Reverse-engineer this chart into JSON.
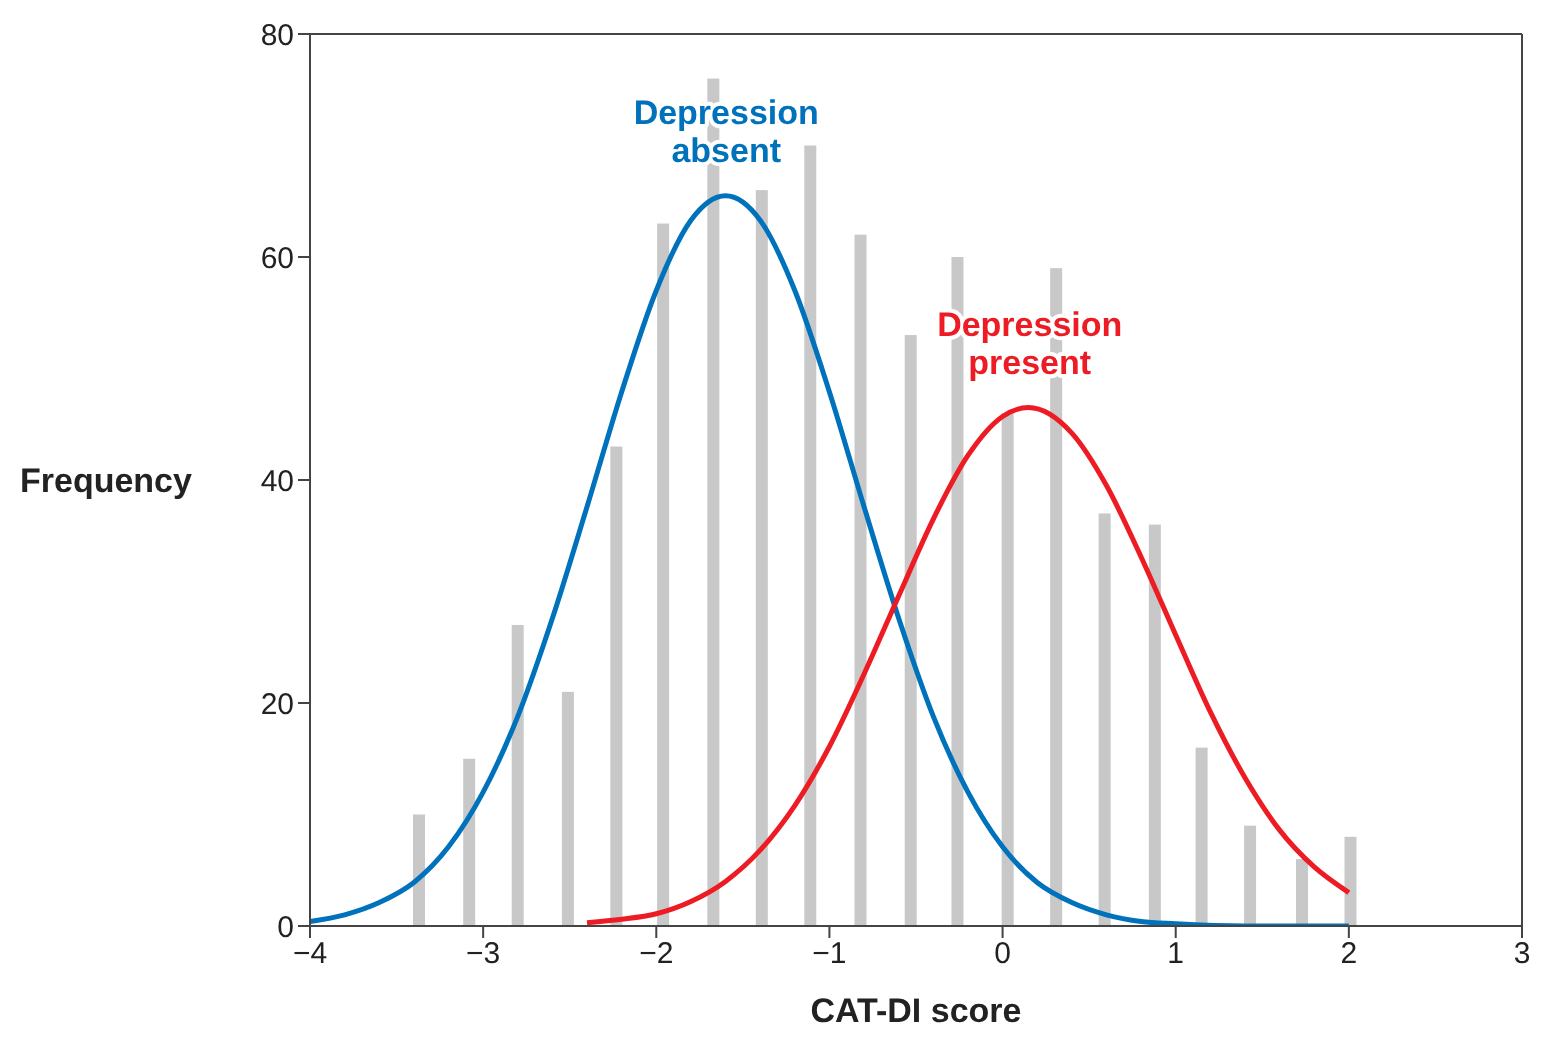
{
  "chart_data": {
    "type": "bar",
    "xlabel": "CAT-DI score",
    "ylabel": "Frequency",
    "xlim": [
      -4,
      3
    ],
    "xticks": [
      -4,
      -3,
      -2,
      -1,
      0,
      1,
      2,
      3
    ],
    "ylim": [
      0,
      80
    ],
    "yticks": [
      0,
      20,
      40,
      60,
      80
    ],
    "grid": false,
    "legend": false,
    "series": [
      {
        "color": "#c8c8c8",
        "x": [
          -3.37,
          -3.08,
          -2.8,
          -2.51,
          -2.23,
          -1.96,
          -1.67,
          -1.39,
          -1.11,
          -0.82,
          -0.53,
          -0.26,
          0.03,
          0.31,
          0.59,
          0.88,
          1.15,
          1.43,
          1.73,
          2.01
        ],
        "values": [
          10,
          15,
          27,
          21,
          43,
          63,
          76,
          66,
          70,
          62,
          53,
          60,
          46,
          59,
          37,
          36,
          16,
          9,
          6,
          8
        ]
      },
      {
        "type": "line",
        "name": "Depression absent",
        "color": "#0072bc",
        "x": [
          -4,
          -3.8,
          -3.6,
          -3.4,
          -3.2,
          -3,
          -2.8,
          -2.6,
          -2.4,
          -2.2,
          -2,
          -1.8,
          -1.6,
          -1.4,
          -1.2,
          -1,
          -0.8,
          -0.6,
          -0.4,
          -0.2,
          0,
          0.2,
          0.4,
          0.6,
          0.8,
          1,
          1.4,
          2
        ],
        "values": [
          0.4,
          1,
          2.1,
          3.9,
          7.1,
          12,
          18.8,
          27.6,
          37.6,
          47.9,
          57,
          63.3,
          65.5,
          63.3,
          57,
          47.9,
          37.6,
          27.6,
          18.8,
          12,
          7.1,
          3.9,
          2.1,
          1,
          0.4,
          0.2,
          0,
          0
        ]
      },
      {
        "type": "line",
        "name": "Depression present",
        "color": "#ed1c24",
        "x": [
          -2.4,
          -2.2,
          -2,
          -1.8,
          -1.6,
          -1.4,
          -1.2,
          -1,
          -0.8,
          -0.6,
          -0.4,
          -0.2,
          0,
          0.15,
          0.4,
          0.6,
          0.8,
          1,
          1.2,
          1.4,
          1.6,
          1.8,
          2
        ],
        "values": [
          0.3,
          0.6,
          1.1,
          2.2,
          4,
          6.8,
          10.8,
          16.1,
          22.6,
          29.6,
          36.5,
          42.2,
          45.7,
          46.5,
          44.2,
          39.5,
          33.1,
          26.1,
          19.2,
          13.3,
          8.6,
          5.3,
          3
        ]
      }
    ]
  }
}
